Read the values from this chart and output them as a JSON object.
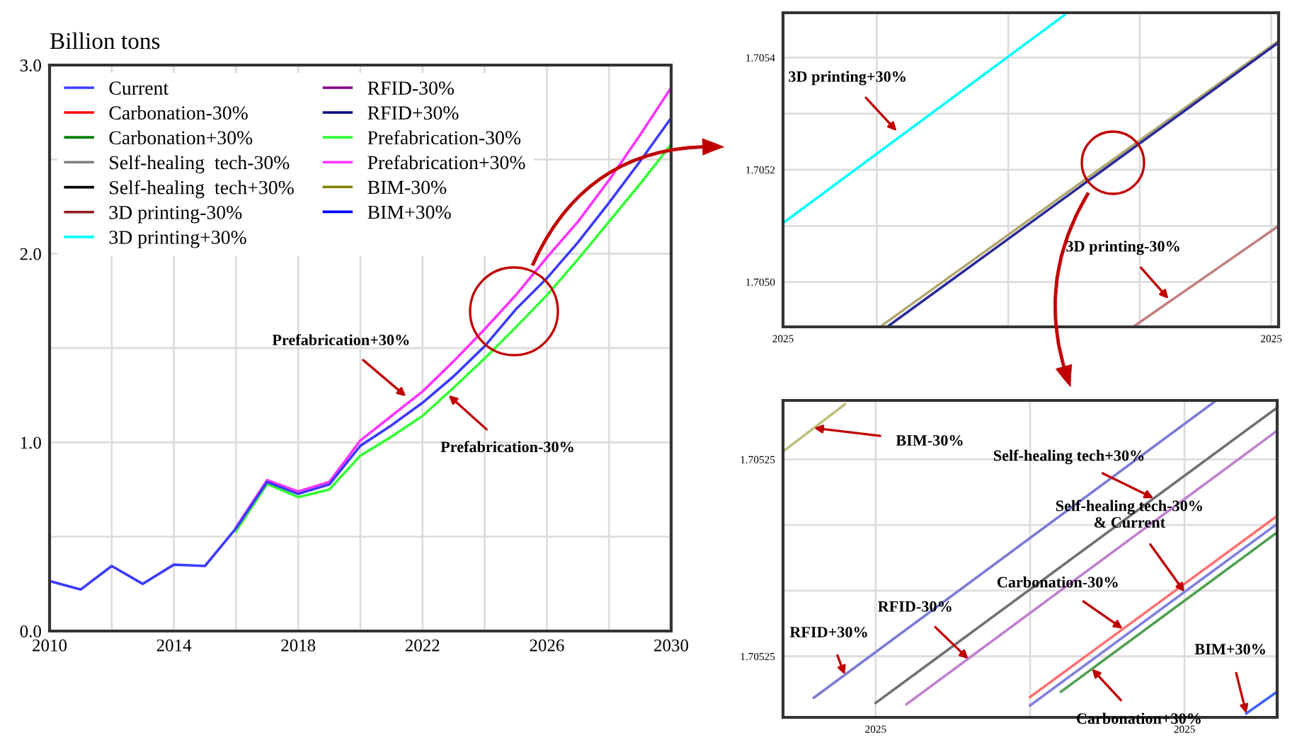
{
  "chart_data": [
    {
      "type": "line",
      "ylabel": "Billion tons",
      "x": [
        2010,
        2011,
        2012,
        2013,
        2014,
        2015,
        2016,
        2017,
        2018,
        2019,
        2020,
        2021,
        2022,
        2023,
        2024,
        2025,
        2026,
        2027,
        2028,
        2029,
        2030
      ],
      "xlim": [
        2010,
        2030
      ],
      "ylim": [
        0,
        3
      ],
      "xticks": [
        2010,
        {
          "value": 2012,
          "label": null
        },
        2014,
        {
          "value": 2016,
          "label": null
        },
        2018,
        {
          "value": 2020,
          "label": null
        },
        2022,
        {
          "value": 2024,
          "label": null
        },
        2026,
        {
          "value": 2028,
          "label": null
        },
        2030
      ],
      "yticks": [
        {
          "value": 0,
          "label": "0.0"
        },
        {
          "value": 0.5,
          "label": null
        },
        {
          "value": 1,
          "label": "1.0"
        },
        {
          "value": 1.5,
          "label": null
        },
        {
          "value": 2,
          "label": "2.0"
        },
        {
          "value": 2.5,
          "label": null
        },
        {
          "value": 3,
          "label": "3.0"
        }
      ],
      "grid": true,
      "legend": "top left",
      "series": [
        {
          "name": "Current",
          "color": "#3b3bff",
          "values": [
            0.265,
            0.22,
            0.345,
            0.25,
            0.352,
            0.345,
            0.545,
            0.79,
            0.727,
            0.777,
            0.982,
            1.09,
            1.21,
            1.35,
            1.51,
            1.705,
            1.87,
            2.06,
            2.27,
            2.49,
            2.72
          ]
        },
        {
          "name": "Carbonation-30%",
          "color": "#ff0000",
          "values": [
            null,
            null,
            null,
            null,
            null,
            null,
            null,
            null,
            null,
            null,
            null,
            null,
            null,
            null,
            null,
            null,
            null,
            null,
            null,
            null,
            null
          ]
        },
        {
          "name": "Carbonation+30%",
          "color": "#008000",
          "values": [
            null,
            null,
            null,
            null,
            null,
            null,
            null,
            null,
            null,
            null,
            null,
            null,
            null,
            null,
            null,
            null,
            null,
            null,
            null,
            null,
            null
          ]
        },
        {
          "name": "Self-healing  tech-30%",
          "color": "#808080",
          "values": [
            null,
            null,
            null,
            null,
            null,
            null,
            null,
            null,
            null,
            null,
            null,
            null,
            null,
            null,
            null,
            null,
            null,
            null,
            null,
            null,
            null
          ]
        },
        {
          "name": "Self-healing  tech+30%",
          "color": "#000000",
          "values": [
            null,
            null,
            null,
            null,
            null,
            null,
            null,
            null,
            null,
            null,
            null,
            null,
            null,
            null,
            null,
            null,
            null,
            null,
            null,
            null,
            null
          ]
        },
        {
          "name": "3D printing-30%",
          "color": "#8b1a1a",
          "values": [
            null,
            null,
            null,
            null,
            null,
            null,
            null,
            null,
            null,
            null,
            null,
            null,
            null,
            null,
            null,
            null,
            null,
            null,
            null,
            null,
            null
          ]
        },
        {
          "name": "3D printing+30%",
          "color": "#00ffff",
          "values": [
            null,
            null,
            null,
            null,
            null,
            null,
            null,
            null,
            null,
            null,
            null,
            null,
            null,
            null,
            null,
            null,
            null,
            null,
            null,
            null,
            null
          ]
        },
        {
          "name": "RFID-30%",
          "color": "#800080",
          "values": [
            null,
            null,
            null,
            null,
            null,
            null,
            null,
            null,
            null,
            null,
            null,
            null,
            null,
            null,
            null,
            null,
            null,
            null,
            null,
            null,
            null
          ]
        },
        {
          "name": "RFID+30%",
          "color": "#000080",
          "values": [
            null,
            null,
            null,
            null,
            null,
            null,
            null,
            null,
            null,
            null,
            null,
            null,
            null,
            null,
            null,
            null,
            null,
            null,
            null,
            null,
            null
          ]
        },
        {
          "name": "Prefabrication-30%",
          "color": "#33ff33",
          "values": [
            null,
            null,
            null,
            null,
            null,
            null,
            0.53,
            0.78,
            0.71,
            0.75,
            0.93,
            1.03,
            1.14,
            1.29,
            1.445,
            1.61,
            1.78,
            1.97,
            2.17,
            2.37,
            2.58
          ]
        },
        {
          "name": "Prefabrication+30%",
          "color": "#ff33ff",
          "values": [
            null,
            null,
            null,
            null,
            null,
            null,
            0.55,
            0.8,
            0.74,
            0.79,
            1.01,
            1.14,
            1.27,
            1.43,
            1.6,
            1.78,
            1.98,
            2.17,
            2.39,
            2.63,
            2.88
          ]
        },
        {
          "name": "BIM-30%",
          "color": "#808000",
          "values": [
            null,
            null,
            null,
            null,
            null,
            null,
            null,
            null,
            null,
            null,
            null,
            null,
            null,
            null,
            null,
            null,
            null,
            null,
            null,
            null,
            null
          ]
        },
        {
          "name": "BIM+30%",
          "color": "#0000ff",
          "values": [
            null,
            null,
            null,
            null,
            null,
            null,
            null,
            null,
            null,
            null,
            null,
            null,
            null,
            null,
            null,
            null,
            null,
            null,
            null,
            null,
            null
          ]
        }
      ],
      "annotations": [
        {
          "text": "Prefabrication+30%",
          "x": 2021.47,
          "y": 1.244
        },
        {
          "text": "Prefabrication-30%",
          "x": 2022.84,
          "y": 1.25
        }
      ]
    },
    {
      "type": "line",
      "xlim": [
        "2025-01-01T02:35",
        "2025-01-02T12:30"
      ],
      "ylim": [
        1.70492,
        1.70548
      ],
      "xticks": [
        {
          "value": "2025-01-01T02:35",
          "label": "2025"
        },
        {
          "value": "2025-01-01T09:00",
          "label": null
        },
        {
          "value": "2025-01-01T18:00",
          "label": null
        },
        {
          "value": "2025-01-02T03:00",
          "label": null
        },
        {
          "value": "2025-01-02T12:00",
          "label": "2025"
        }
      ],
      "yticks": [
        {
          "value": 1.705,
          "label": "1.7050"
        },
        {
          "value": 1.7051,
          "label": null
        },
        {
          "value": 1.7052,
          "label": "1.7052"
        },
        {
          "value": 1.7053,
          "label": null
        },
        {
          "value": 1.7054,
          "label": "1.7054"
        }
      ],
      "grid": true,
      "series": [
        {
          "color": "#00ffff",
          "x": [
            "2025-01-01T02:35",
            "2025-01-01T21:51"
          ],
          "values": [
            1.705105,
            1.705476
          ]
        },
        {
          "color": "#c08080",
          "x": [
            "2025-01-02T02:33",
            "2025-01-02T12:30"
          ],
          "values": [
            1.70492,
            1.7051
          ]
        },
        {
          "color": "#b0a870",
          "x": [
            "2025-01-01T09:23",
            "2025-01-02T12:30"
          ],
          "values": [
            1.704923,
            1.70543
          ]
        },
        {
          "color": "#2a2a9a",
          "x": [
            "2025-01-01T09:43",
            "2025-01-02T12:30"
          ],
          "values": [
            1.70492,
            1.705427
          ]
        }
      ],
      "annotations": [
        {
          "text": "3D printing+30%",
          "x": "2025-01-01T10:22",
          "y": 1.705269
        },
        {
          "text": "3D printing-30%",
          "x": "2025-01-02T04:58",
          "y": 1.70497
        }
      ]
    },
    {
      "type": "line",
      "xlim": [
        "2025-01-02T02:07",
        "2025-01-02T02:23"
      ],
      "ylim": [
        1.70525007,
        1.7052549
      ],
      "xticks": [
        {
          "value": "2025-01-02T02:10",
          "label": "2025"
        },
        {
          "value": "2025-01-02T02:15",
          "label": null
        },
        {
          "value": "2025-01-02T02:20",
          "label": "2025"
        }
      ],
      "yticks": [
        {
          "value": 1.705251,
          "label": "1.70525"
        },
        {
          "value": 1.705252,
          "label": null
        },
        {
          "value": 1.705253,
          "label": null
        },
        {
          "value": 1.705254,
          "label": "1.70525"
        }
      ],
      "grid": true,
      "series": [
        {
          "color": "#c0c080",
          "x": [
            "2025-01-02T02:07",
            "2025-01-02T02:09"
          ],
          "values": [
            1.70525412,
            1.70525484
          ]
        },
        {
          "color": "#7a7ad6",
          "x": [
            "2025-01-02T02:08",
            "2025-01-02T02:21"
          ],
          "values": [
            1.70525037,
            1.70525489
          ]
        },
        {
          "color": "#707070",
          "x": [
            "2025-01-02T02:10",
            "2025-01-02T02:23"
          ],
          "values": [
            1.70525029,
            1.70525479
          ]
        },
        {
          "color": "#c080d0",
          "x": [
            "2025-01-02T02:11",
            "2025-01-02T02:23"
          ],
          "values": [
            1.70525027,
            1.70525444
          ]
        },
        {
          "color": "#ff7070",
          "x": [
            "2025-01-02T02:15",
            "2025-01-02T02:23"
          ],
          "values": [
            1.70525038,
            1.70525314
          ]
        },
        {
          "color": "#8080e0",
          "x": [
            "2025-01-02T02:15",
            "2025-01-02T02:23"
          ],
          "values": [
            1.70525025,
            1.70525302
          ]
        },
        {
          "color": "#50a050",
          "x": [
            "2025-01-02T02:16",
            "2025-01-02T02:23"
          ],
          "values": [
            1.70525046,
            1.70525289
          ]
        },
        {
          "color": "#4060ff",
          "x": [
            "2025-01-02T02:22",
            "2025-01-02T02:23"
          ],
          "values": [
            1.70525013,
            1.70525046
          ]
        }
      ],
      "annotations": [
        {
          "text": "BIM-30%",
          "x": "2025-01-02T02:08",
          "y": 1.70525448
        },
        {
          "text": "Self-healing tech+30%",
          "x": "2025-01-02T02:19",
          "y": 1.70525341
        },
        {
          "text": "Self-healing tech-30%\n& Current",
          "x": "2025-01-02T02:20",
          "y": 1.70525198
        },
        {
          "text": "Carbonation-30%",
          "x": "2025-01-02T02:18",
          "y": 1.70525142
        },
        {
          "text": "RFID-30%",
          "x": "2025-01-02T02:13",
          "y": 1.70525096
        },
        {
          "text": "RFID+30%",
          "x": "2025-01-02T02:09",
          "y": 1.70525072
        },
        {
          "text": "Carbonation+30%",
          "x": "2025-01-02T02:17",
          "y": 1.70525081
        },
        {
          "text": "BIM+30%",
          "x": "2025-01-02T02:22",
          "y": 1.70525013
        }
      ]
    }
  ]
}
